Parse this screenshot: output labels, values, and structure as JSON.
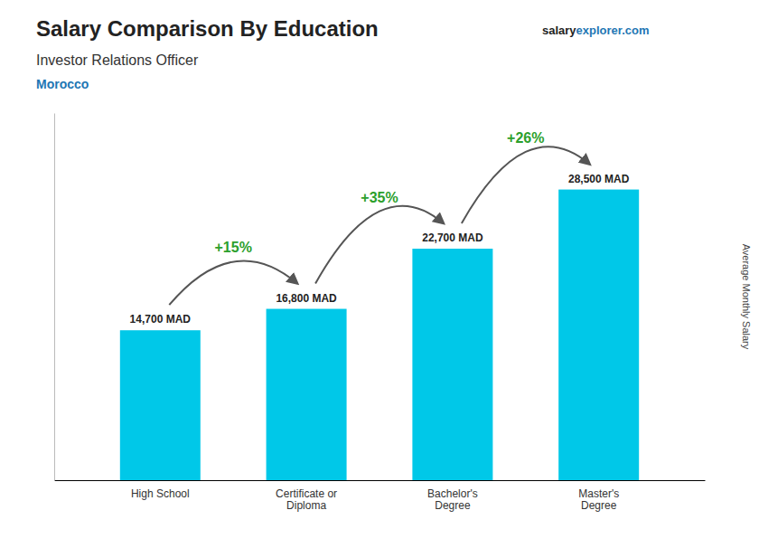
{
  "chart_data": {
    "type": "bar",
    "title": "Salary Comparison By Education",
    "subtitle": "Investor Relations Officer",
    "ylabel": "Average Monthly Salary",
    "annotations": [
      "Morocco",
      "salary",
      "explorer.com",
      "+15%",
      "+35%",
      "+26%"
    ],
    "categories": [
      "High School",
      "Certificate or\nDiploma",
      "Bachelor's\nDegree",
      "Master's\nDegree"
    ],
    "values": [
      14700,
      16800,
      22700,
      28500
    ],
    "value_labels": [
      "14,700 MAD",
      "16,800 MAD",
      "22,700 MAD",
      "28,500 MAD"
    ],
    "data_labels": true,
    "color": "#00c8e8",
    "ylim": [
      0,
      36000
    ],
    "grid": false,
    "tick_labels": "x"
  }
}
